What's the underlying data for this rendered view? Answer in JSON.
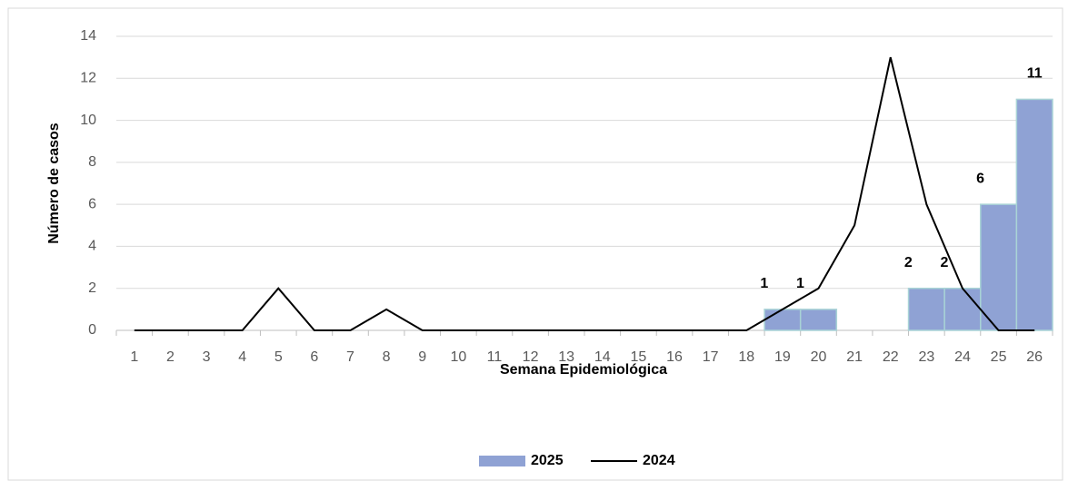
{
  "chart_data": {
    "type": "bar",
    "x_label": "Semana Epidemiológica",
    "y_label": "Número de casos",
    "categories": [
      "1",
      "2",
      "3",
      "4",
      "5",
      "6",
      "7",
      "8",
      "9",
      "10",
      "11",
      "12",
      "13",
      "14",
      "15",
      "16",
      "17",
      "18",
      "19",
      "20",
      "21",
      "22",
      "23",
      "24",
      "25",
      "26"
    ],
    "series": [
      {
        "name": "2025",
        "type": "bar",
        "color": "#8fa2d4",
        "values": [
          null,
          null,
          null,
          null,
          null,
          null,
          null,
          null,
          null,
          null,
          null,
          null,
          null,
          null,
          null,
          null,
          null,
          null,
          1,
          1,
          null,
          null,
          2,
          2,
          6,
          11
        ]
      },
      {
        "name": "2024",
        "type": "line",
        "color": "#000000",
        "values": [
          0,
          0,
          0,
          0,
          2,
          0,
          0,
          1,
          0,
          0,
          0,
          0,
          0,
          0,
          0,
          0,
          0,
          0,
          1,
          2,
          5,
          13,
          6,
          2,
          0,
          0
        ]
      }
    ],
    "ylim": [
      0,
      14
    ],
    "yticks": [
      0,
      2,
      4,
      6,
      8,
      10,
      12,
      14
    ],
    "grid": true,
    "legend": "bottom"
  }
}
